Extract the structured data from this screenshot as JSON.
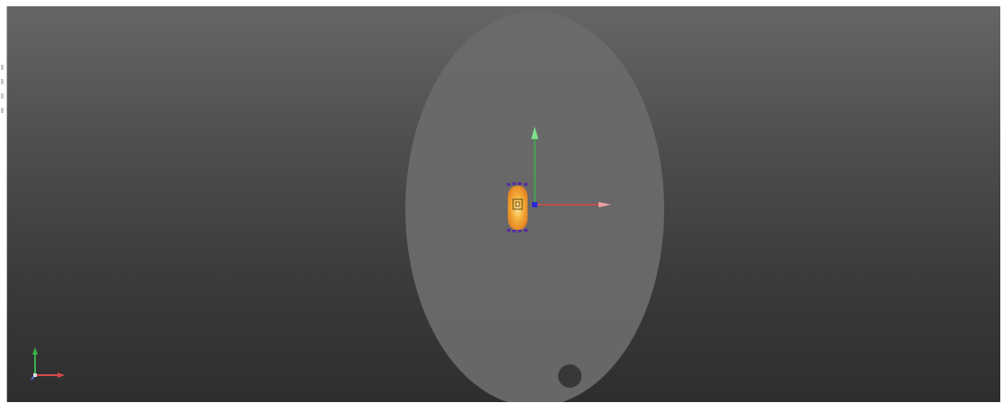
{
  "viewport": {
    "background_top": "#666666",
    "background_bottom": "#2e2e2e"
  },
  "scene": {
    "ellipse_color": "#6b6b6b",
    "marker_color": "#3a3a3a",
    "object_colors": {
      "outer": "#d9a324",
      "mid": "#f08a2a",
      "inner": "#f7d98a",
      "handles": "#5a2a9a"
    }
  },
  "gizmo": {
    "x_axis_color": "#d84848",
    "y_axis_color": "#3ab24a",
    "origin_color": "#2a2ad8"
  },
  "axis_triad": {
    "x_color": "#d84848",
    "y_color": "#3ab24a",
    "z_color": "#4a6ad8"
  }
}
